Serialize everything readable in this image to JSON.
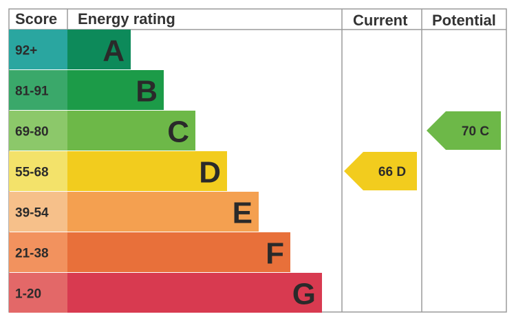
{
  "chart_data": {
    "type": "bar",
    "headers": {
      "score": "Score",
      "rating": "Energy rating",
      "current": "Current",
      "potential": "Potential"
    },
    "bands": [
      {
        "range": "92+",
        "letter": "A",
        "score_color": "#2aa6a0",
        "bar_color": "#0d8a5a"
      },
      {
        "range": "81-91",
        "letter": "B",
        "score_color": "#3aa86a",
        "bar_color": "#1c9b48"
      },
      {
        "range": "69-80",
        "letter": "C",
        "score_color": "#8cc86a",
        "bar_color": "#6db848"
      },
      {
        "range": "55-68",
        "letter": "D",
        "score_color": "#f3e26a",
        "bar_color": "#f2cc1e"
      },
      {
        "range": "39-54",
        "letter": "E",
        "score_color": "#f6c08a",
        "bar_color": "#f4a050"
      },
      {
        "range": "21-38",
        "letter": "F",
        "score_color": "#f2925e",
        "bar_color": "#e8703a"
      },
      {
        "range": "1-20",
        "letter": "G",
        "score_color": "#e36868",
        "bar_color": "#d83a50"
      }
    ],
    "current": {
      "value": 66,
      "letter": "D",
      "label": "66 D",
      "color": "#f2cc1e"
    },
    "potential": {
      "value": 70,
      "letter": "C",
      "label": "70 C",
      "color": "#6db848"
    }
  }
}
